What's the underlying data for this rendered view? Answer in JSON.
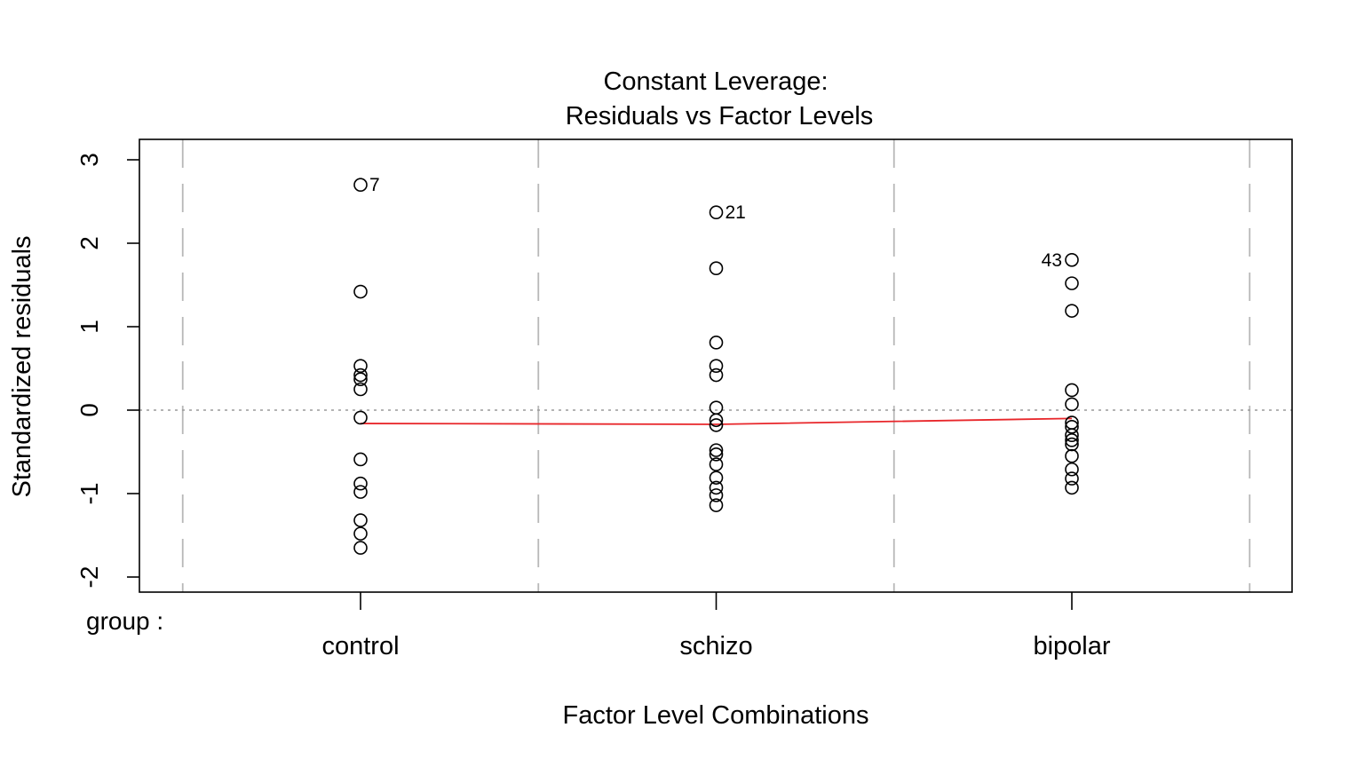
{
  "chart_data": {
    "type": "scatter",
    "title": "Constant Leverage:",
    "subtitle": "Residuals vs Factor Levels",
    "xlabel": "Factor Level Combinations",
    "ylabel": "Standardized residuals",
    "factor_label": "group :",
    "categories": [
      "control",
      "schizo",
      "bipolar"
    ],
    "ylim": [
      -2.25,
      3.25
    ],
    "yticks": [
      -2,
      -1,
      0,
      1,
      2,
      3
    ],
    "ytick_labels": [
      "-2",
      "-1",
      "0",
      "1",
      "2",
      "3"
    ],
    "reference_line_y": 0,
    "grid": "dashed vertical group separators",
    "series": [
      {
        "category": "control",
        "values": [
          2.7,
          1.42,
          0.53,
          0.42,
          0.37,
          0.25,
          -0.09,
          -0.59,
          -0.88,
          -0.98,
          -1.32,
          -1.48,
          -1.65
        ]
      },
      {
        "category": "schizo",
        "values": [
          2.37,
          1.7,
          0.81,
          0.53,
          0.42,
          0.03,
          -0.12,
          -0.18,
          -0.48,
          -0.53,
          -0.65,
          -0.81,
          -0.93,
          -1.02,
          -1.14
        ]
      },
      {
        "category": "bipolar",
        "values": [
          1.8,
          1.52,
          1.19,
          0.24,
          0.07,
          -0.15,
          -0.2,
          -0.3,
          -0.36,
          -0.41,
          -0.55,
          -0.71,
          -0.82,
          -0.93
        ]
      }
    ],
    "point_labels": [
      {
        "category": "control",
        "y": 2.7,
        "text": "7",
        "side": "right"
      },
      {
        "category": "schizo",
        "y": 2.37,
        "text": "21",
        "side": "right"
      },
      {
        "category": "bipolar",
        "y": 1.8,
        "text": "43",
        "side": "left"
      }
    ],
    "smooth_line": {
      "color": "#e8262a",
      "values": [
        -0.16,
        -0.17,
        -0.1
      ]
    },
    "colors": {
      "points": "#000000",
      "smooth": "#e8262a",
      "reference": "#9a9a9a",
      "separators": "#b8b8b8"
    }
  }
}
